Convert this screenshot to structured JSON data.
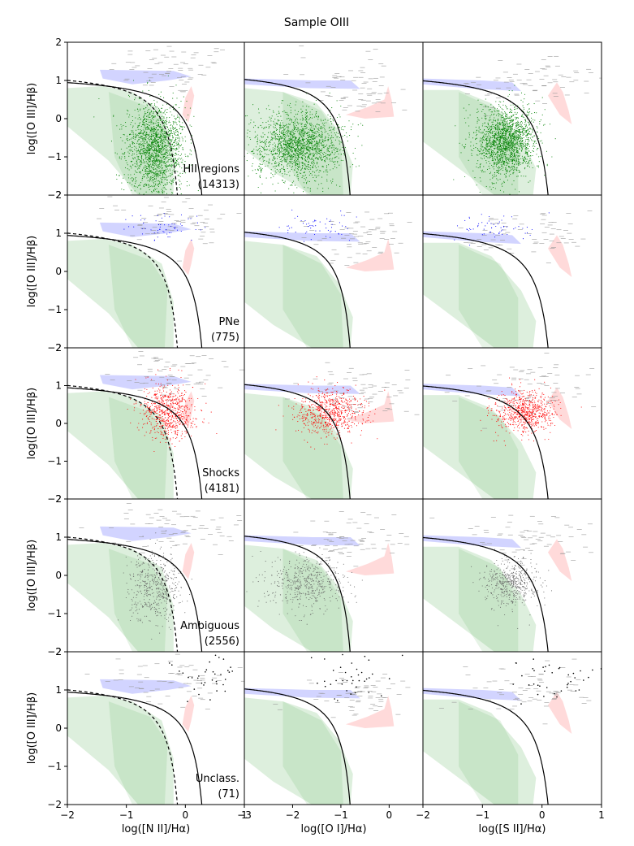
{
  "figure_title": "Sample OIII",
  "colors": {
    "hii": "#008000",
    "pne": "#0000ff",
    "shocks": "#ff0000",
    "ambiguous": "#666666",
    "unclass": "#000000",
    "background_points": "#9a9a9a",
    "green_region": "#2e9a2e",
    "blue_region": "#4a55ff",
    "red_region": "#ff5555"
  },
  "chart_data": {
    "type": "scatter",
    "title": "Sample OIII",
    "ylabel": "log([O III]/Hβ)",
    "ylim": [
      -2,
      2
    ],
    "yticks": [
      -2,
      -1,
      0,
      1,
      2
    ],
    "columns": [
      {
        "key": "nii",
        "xlabel": "log([N II]/Hα)",
        "xlim": [
          -2,
          1
        ],
        "xticks": [
          -2,
          -1,
          0,
          1,
          2
        ]
      },
      {
        "key": "oi",
        "xlabel": "log([O I]/Hα)",
        "xlim": [
          -3,
          0.7
        ],
        "xticks": [
          -3,
          -2,
          -1,
          0
        ]
      },
      {
        "key": "sii",
        "xlabel": "log([S II]/Hα)",
        "xlim": [
          -2,
          1
        ],
        "xticks": [
          -2,
          -1,
          0,
          1
        ]
      }
    ],
    "rows": [
      {
        "label": "HII regions",
        "count": "(14313)",
        "color": "#008000",
        "centers": {
          "nii": [
            -0.5,
            -0.8
          ],
          "oi": [
            -1.9,
            -0.7
          ],
          "sii": [
            -0.6,
            -0.6
          ]
        }
      },
      {
        "label": "PNe",
        "count": "(775)",
        "color": "#0000ff",
        "centers": {
          "nii": [
            -0.3,
            1.15
          ],
          "oi": [
            -1.5,
            1.15
          ],
          "sii": [
            -0.7,
            1.15
          ]
        }
      },
      {
        "label": "Shocks",
        "count": "(4181)",
        "color": "#ff0000",
        "centers": {
          "nii": [
            -0.3,
            0.3
          ],
          "oi": [
            -1.2,
            0.3
          ],
          "sii": [
            -0.3,
            0.3
          ]
        }
      },
      {
        "label": "Ambiguous",
        "count": "(2556)",
        "color": "#666666",
        "centers": {
          "nii": [
            -0.5,
            -0.3
          ],
          "oi": [
            -1.7,
            -0.2
          ],
          "sii": [
            -0.5,
            -0.2
          ]
        }
      },
      {
        "label": "Unclass.",
        "count": "(71)",
        "color": "#000000",
        "centers": {
          "nii": [
            0.4,
            1.4
          ],
          "oi": [
            -0.8,
            1.4
          ],
          "sii": [
            0.2,
            1.4
          ]
        }
      }
    ],
    "grid": false,
    "legend": "none"
  }
}
